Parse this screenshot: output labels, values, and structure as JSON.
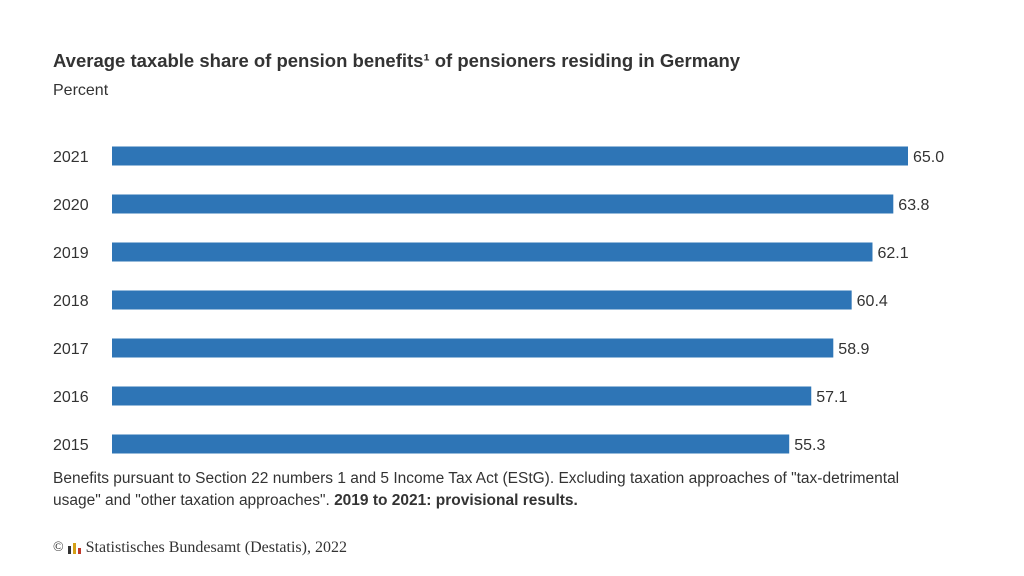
{
  "title": "Average taxable share of pension benefits¹ of pensioners residing in Germany",
  "subtitle": "Percent",
  "footnote": {
    "text": "Benefits pursuant to Section 22 numbers 1 and 5 Income Tax Act (EStG). Excluding taxation approaches of \"tax-detrimental usage\" and \"other taxation approaches\". ",
    "bold": "2019 to 2021: provisional results."
  },
  "source": {
    "copyright": "©",
    "text": "Statistisches Bundesamt (Destatis), 2022"
  },
  "colors": {
    "bar": "#2e75b6",
    "text": "#333333"
  },
  "chart_data": {
    "type": "bar",
    "orientation": "horizontal",
    "categories": [
      "2021",
      "2020",
      "2019",
      "2018",
      "2017",
      "2016",
      "2015"
    ],
    "values": [
      65.0,
      63.8,
      62.1,
      60.4,
      58.9,
      57.1,
      55.3
    ],
    "value_labels": [
      "65.0",
      "63.8",
      "62.1",
      "60.4",
      "58.9",
      "57.1",
      "55.3"
    ],
    "xlim": [
      0,
      65
    ],
    "grid": false,
    "axis_visible": false
  }
}
